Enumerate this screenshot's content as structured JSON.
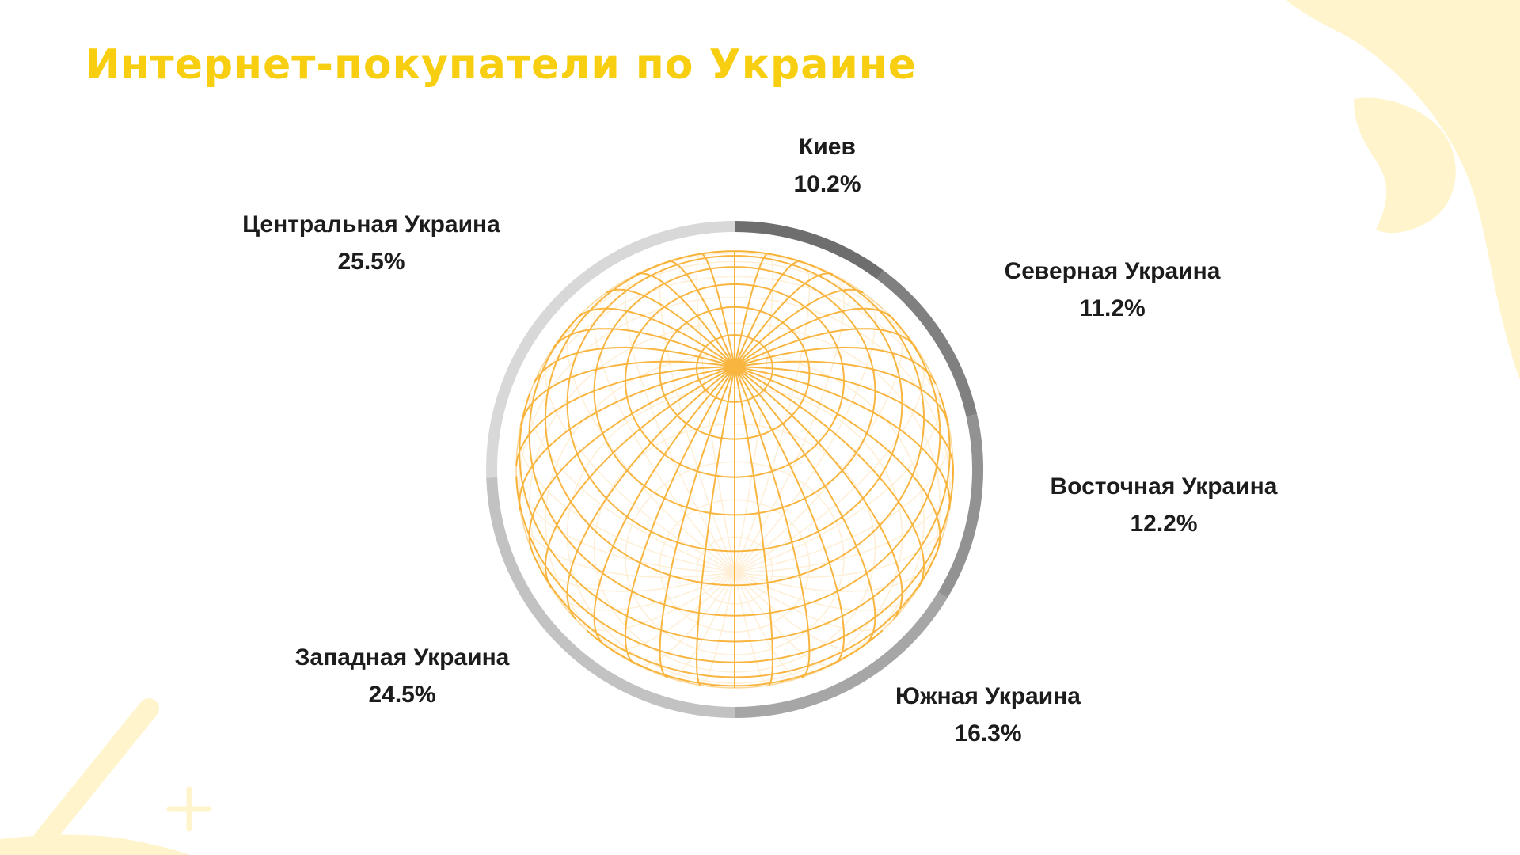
{
  "title": "Интернет-покупатели по Украине",
  "colors": {
    "title": "#f8cf10",
    "globe": "#f7a81e",
    "decoration": "#fff4cc"
  },
  "chart_data": {
    "type": "pie",
    "title": "Интернет-покупатели по Украине",
    "slices": [
      {
        "label": "Киев",
        "value": 10.2,
        "value_label": "10.2%",
        "color": "#6e6e6e"
      },
      {
        "label": "Северная Украина",
        "value": 11.2,
        "value_label": "11.2%",
        "color": "#808080"
      },
      {
        "label": "Восточная Украина",
        "value": 12.2,
        "value_label": "12.2%",
        "color": "#929292"
      },
      {
        "label": "Южная Украина",
        "value": 16.3,
        "value_label": "16.3%",
        "color": "#a6a6a6"
      },
      {
        "label": "Западная Украина",
        "value": 24.5,
        "value_label": "24.5%",
        "color": "#c2c2c2"
      },
      {
        "label": "Центральная Украина",
        "value": 25.5,
        "value_label": "25.5%",
        "color": "#d8d8d8"
      }
    ]
  }
}
